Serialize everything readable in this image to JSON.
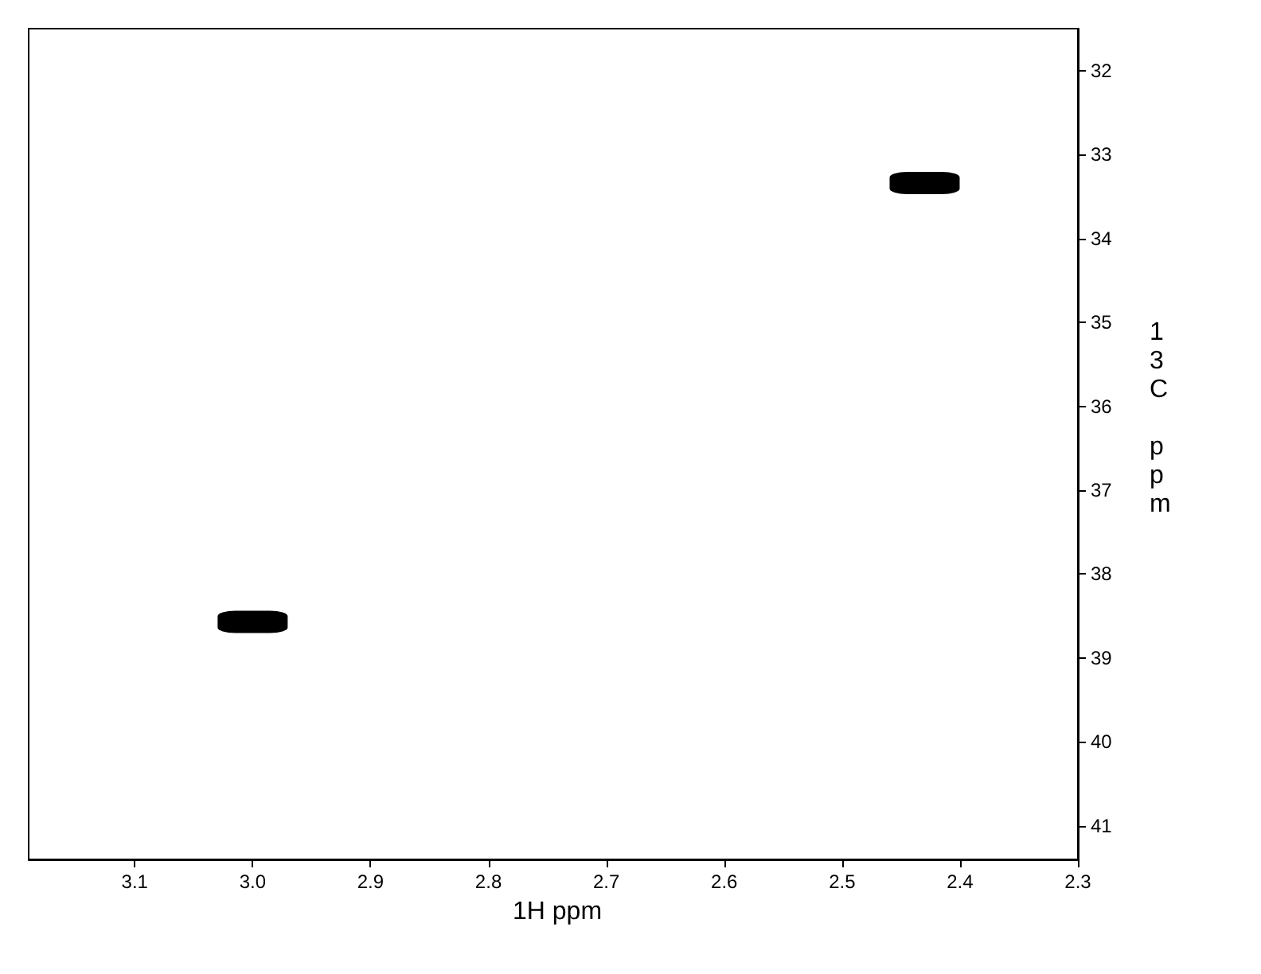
{
  "chart_data": {
    "type": "scatter",
    "xlabel": "1H ppm",
    "ylabel": "13C ppm",
    "x": [
      3.0,
      2.43
    ],
    "values": [
      38.57,
      33.34
    ],
    "color": "#000000",
    "xlim": [
      3.19,
      2.3
    ],
    "xticks": [
      3.1,
      {
        "value": 3.0,
        "label": "3.0"
      },
      2.9,
      2.8,
      2.7,
      2.6,
      2.5,
      2.4,
      2.3
    ],
    "ylim": [
      41.4,
      31.5
    ],
    "yticks": [
      32,
      33,
      34,
      35,
      36,
      37,
      38,
      39,
      40,
      41
    ],
    "grid": false
  }
}
